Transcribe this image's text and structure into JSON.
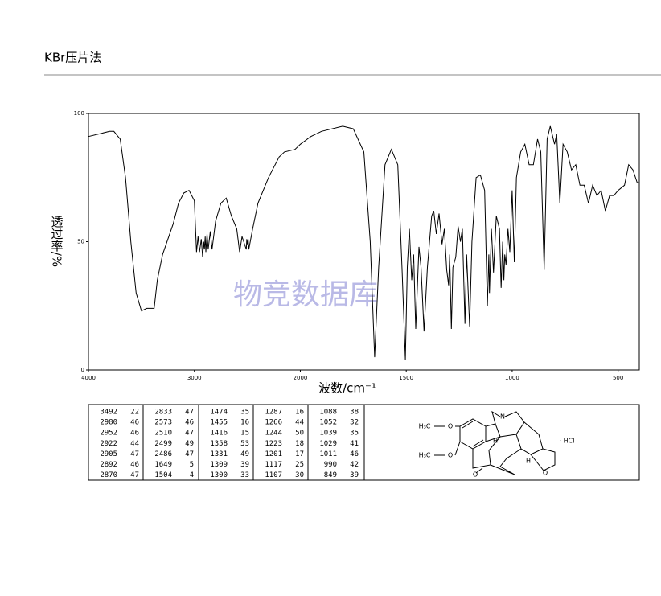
{
  "header": {
    "title": "KBr压片法"
  },
  "chart_data": {
    "type": "line",
    "xlabel": "波数/cm⁻¹",
    "ylabel": "透过率/%",
    "watermark": "物竞数据库",
    "color": "#000000",
    "xlim": [
      4000,
      400
    ],
    "xticks": [
      4000,
      3000,
      2000,
      1500,
      1000,
      500
    ],
    "ylim": [
      0,
      100
    ],
    "yticks": [
      0,
      50,
      100
    ],
    "x": [
      4000,
      3900,
      3800,
      3760,
      3700,
      3650,
      3600,
      3550,
      3500,
      3450,
      3380,
      3350,
      3300,
      3200,
      3150,
      3100,
      3050,
      3000,
      2980,
      2965,
      2952,
      2935,
      2922,
      2912,
      2905,
      2898,
      2892,
      2880,
      2870,
      2850,
      2833,
      2800,
      2750,
      2700,
      2650,
      2600,
      2573,
      2550,
      2510,
      2505,
      2499,
      2492,
      2486,
      2450,
      2400,
      2300,
      2200,
      2150,
      2050,
      2000,
      1950,
      1900,
      1800,
      1750,
      1700,
      1670,
      1649,
      1630,
      1600,
      1570,
      1540,
      1520,
      1504,
      1495,
      1485,
      1474,
      1465,
      1455,
      1440,
      1430,
      1416,
      1400,
      1380,
      1370,
      1358,
      1345,
      1331,
      1320,
      1309,
      1300,
      1295,
      1287,
      1280,
      1266,
      1255,
      1244,
      1235,
      1223,
      1215,
      1201,
      1190,
      1170,
      1150,
      1130,
      1117,
      1110,
      1107,
      1098,
      1088,
      1075,
      1060,
      1052,
      1045,
      1039,
      1035,
      1029,
      1020,
      1011,
      1000,
      990,
      980,
      960,
      940,
      920,
      900,
      880,
      865,
      849,
      835,
      820,
      800,
      790,
      775,
      760,
      740,
      720,
      700,
      680,
      660,
      640,
      620,
      600,
      580,
      560,
      540,
      520,
      500,
      470,
      450,
      430,
      410,
      400
    ],
    "values": [
      91,
      92,
      93,
      93,
      90,
      75,
      50,
      30,
      23,
      24,
      24,
      35,
      45,
      57,
      65,
      69,
      70,
      66,
      46,
      52,
      46,
      51,
      44,
      50,
      47,
      52,
      46,
      53,
      47,
      54,
      47,
      58,
      65,
      67,
      60,
      55,
      46,
      52,
      47,
      51,
      49,
      51,
      47,
      55,
      65,
      75,
      83,
      85,
      86,
      88,
      91,
      93,
      95,
      94,
      85,
      50,
      5,
      40,
      80,
      86,
      80,
      40,
      4,
      40,
      55,
      35,
      45,
      16,
      48,
      40,
      15,
      40,
      60,
      62,
      53,
      61,
      49,
      55,
      39,
      33,
      45,
      16,
      40,
      44,
      56,
      50,
      55,
      18,
      45,
      17,
      50,
      75,
      76,
      70,
      25,
      45,
      30,
      55,
      38,
      60,
      55,
      32,
      50,
      35,
      45,
      41,
      55,
      46,
      70,
      42,
      75,
      85,
      88,
      80,
      80,
      90,
      85,
      39,
      90,
      95,
      88,
      92,
      65,
      88,
      85,
      78,
      80,
      72,
      72,
      65,
      72,
      68,
      70,
      62,
      68,
      68,
      70,
      72,
      80,
      78,
      73,
      73
    ]
  },
  "peak_table": {
    "rows": [
      [
        3492,
        22,
        2833,
        47,
        1474,
        35,
        1287,
        16,
        1088,
        38
      ],
      [
        2980,
        46,
        2573,
        46,
        1455,
        16,
        1266,
        44,
        1052,
        32
      ],
      [
        2952,
        46,
        2510,
        47,
        1416,
        15,
        1244,
        50,
        1039,
        35
      ],
      [
        2922,
        44,
        2499,
        49,
        1358,
        53,
        1223,
        18,
        1029,
        41
      ],
      [
        2905,
        47,
        2486,
        47,
        1331,
        49,
        1201,
        17,
        1011,
        46
      ],
      [
        2892,
        46,
        1649,
        5,
        1309,
        39,
        1117,
        25,
        990,
        42
      ],
      [
        2870,
        47,
        1504,
        4,
        1300,
        33,
        1107,
        30,
        849,
        39
      ]
    ]
  },
  "structure": {
    "labels": [
      "H₃C",
      "O",
      "H₃C",
      "O",
      "N",
      "H",
      "H",
      "O",
      "O",
      "· HCl"
    ]
  }
}
